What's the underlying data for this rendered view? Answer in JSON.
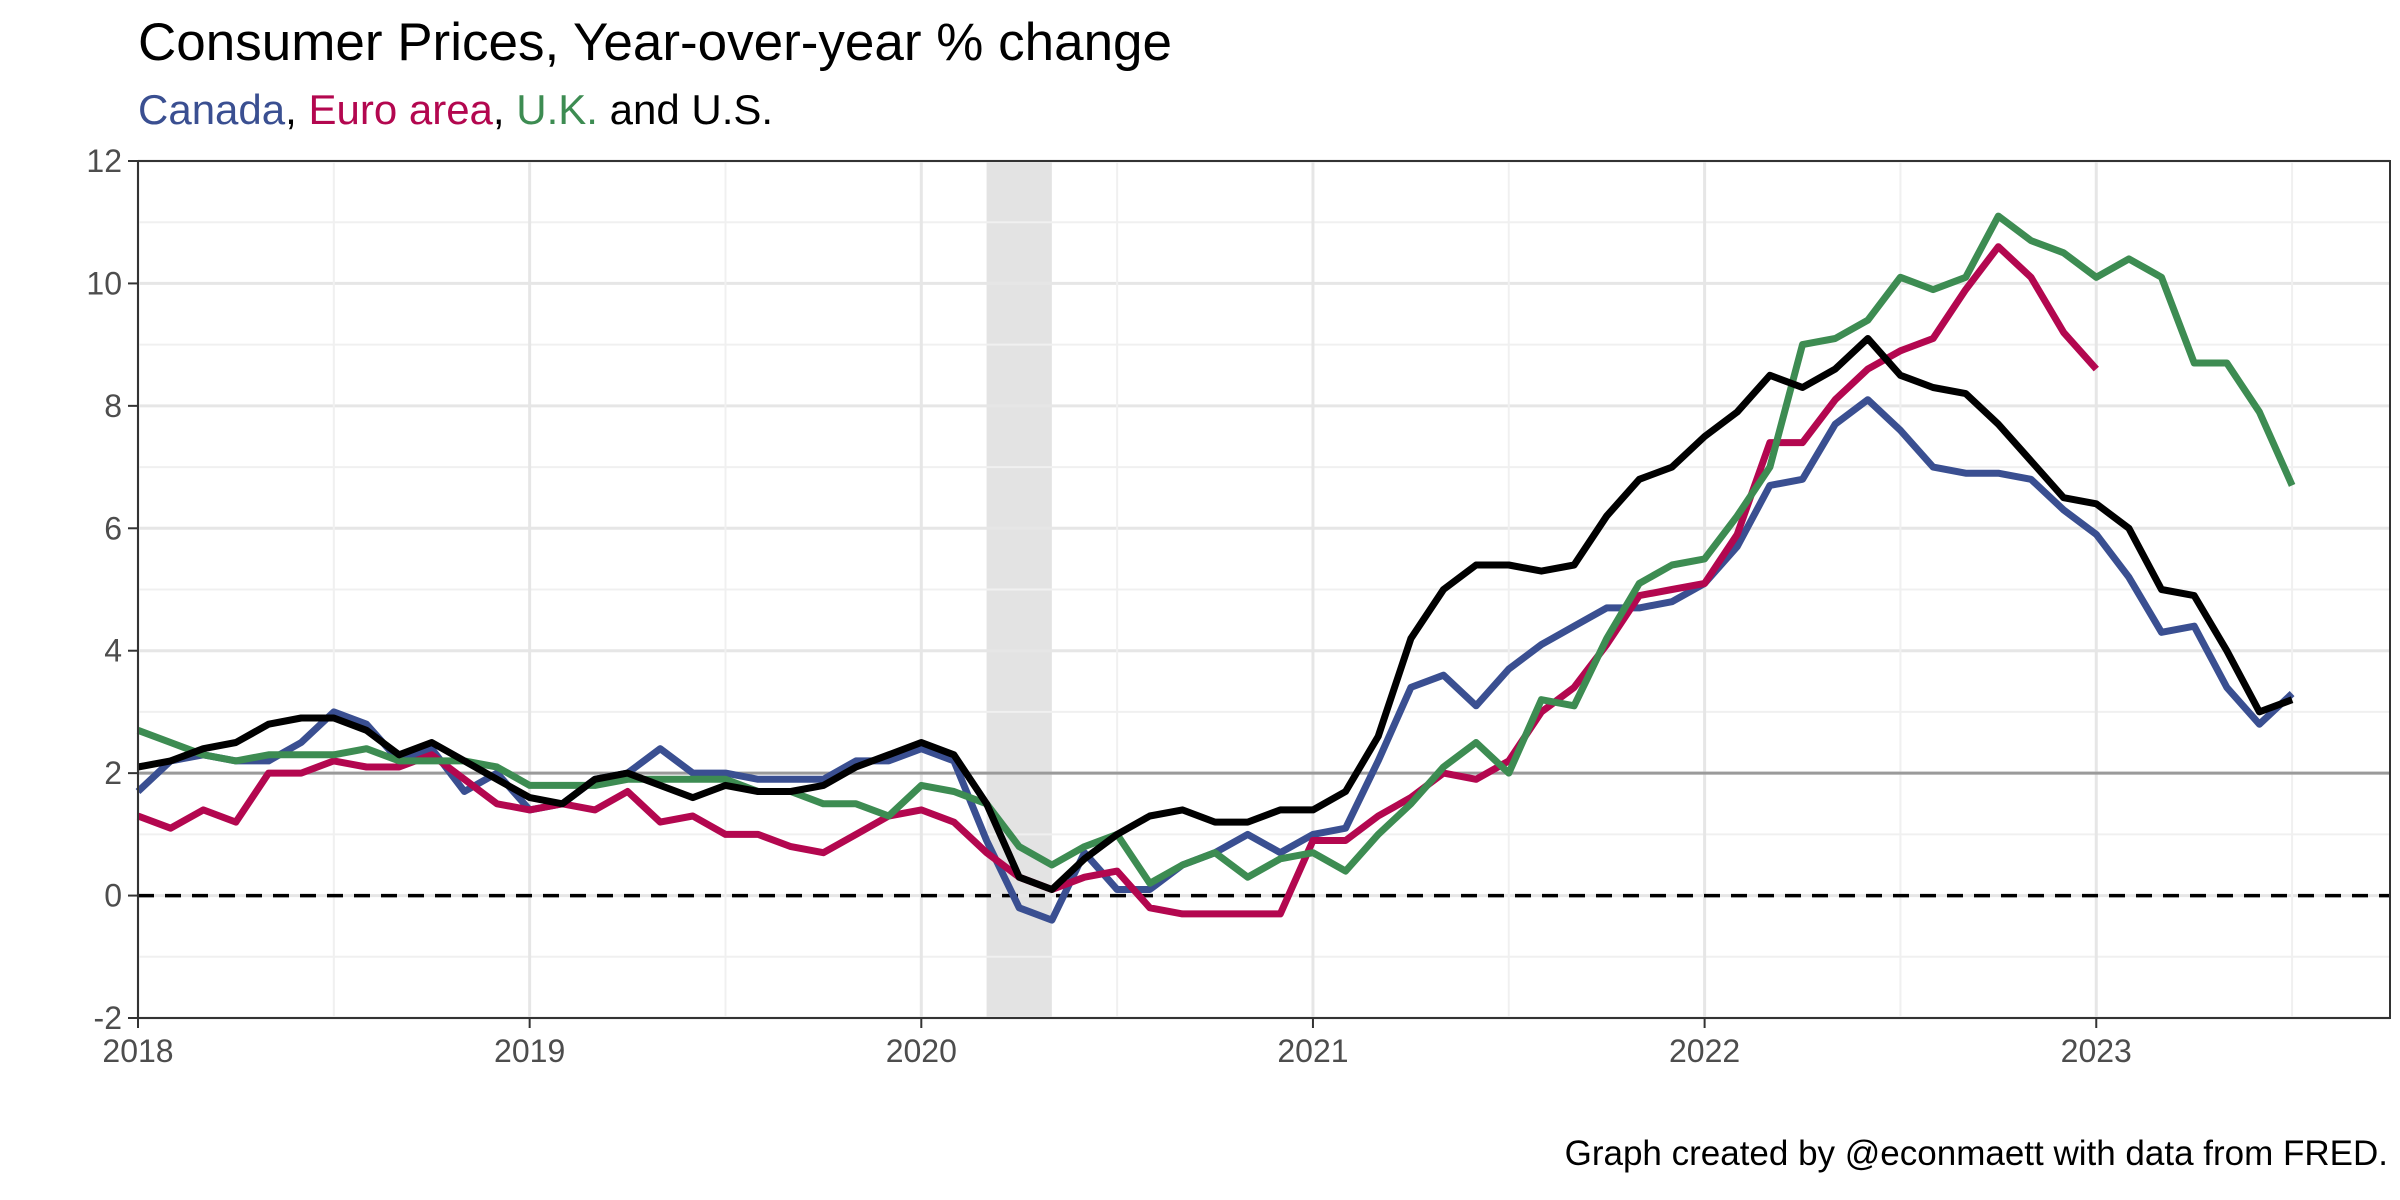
{
  "chart_data": {
    "type": "line",
    "title": "Consumer Prices, Year-over-year % change",
    "subtitle": {
      "parts": [
        {
          "text": "Canada",
          "color": "#3a4f91"
        },
        {
          "text": ", ",
          "color": "#000000"
        },
        {
          "text": "Euro area",
          "color": "#b3074f"
        },
        {
          "text": ", ",
          "color": "#000000"
        },
        {
          "text": "U.K.",
          "color": "#3d8c52"
        },
        {
          "text": " and U.S.",
          "color": "#000000"
        }
      ]
    },
    "caption": "Graph created by @econmaett with data from FRED.",
    "xlabel": "",
    "ylabel": "",
    "ylim": [
      -2,
      12
    ],
    "xlim": [
      "2018-01",
      "2023-10"
    ],
    "grid": true,
    "legend": "subtitle",
    "y_ticks": [
      -2,
      0,
      2,
      4,
      6,
      8,
      10,
      12
    ],
    "x_ticks": [
      "2018",
      "2019",
      "2020",
      "2021",
      "2022",
      "2023"
    ],
    "reference_lines": [
      {
        "y": 2,
        "style": "solid",
        "color": "#9a9a9a"
      },
      {
        "y": 0,
        "style": "dashed",
        "color": "#000000"
      }
    ],
    "recession_shading": [
      {
        "start": "2020-03",
        "end": "2020-04"
      }
    ],
    "series": [
      {
        "name": "Canada",
        "color": "#3a4f91",
        "start": "2018-01",
        "values": [
          1.7,
          2.2,
          2.3,
          2.2,
          2.2,
          2.5,
          3.0,
          2.8,
          2.2,
          2.4,
          1.7,
          2.0,
          1.4,
          1.5,
          1.9,
          2.0,
          2.4,
          2.0,
          2.0,
          1.9,
          1.9,
          1.9,
          2.2,
          2.2,
          2.4,
          2.2,
          0.9,
          -0.2,
          -0.4,
          0.7,
          0.1,
          0.1,
          0.5,
          0.7,
          1.0,
          0.7,
          1.0,
          1.1,
          2.2,
          3.4,
          3.6,
          3.1,
          3.7,
          4.1,
          4.4,
          4.7,
          4.7,
          4.8,
          5.1,
          5.7,
          6.7,
          6.8,
          7.7,
          8.1,
          7.6,
          7.0,
          6.9,
          6.9,
          6.8,
          6.3,
          5.9,
          5.2,
          4.3,
          4.4,
          3.4,
          2.8,
          3.3
        ]
      },
      {
        "name": "Euro area",
        "color": "#b3074f",
        "start": "2018-01",
        "values": [
          1.3,
          1.1,
          1.4,
          1.2,
          2.0,
          2.0,
          2.2,
          2.1,
          2.1,
          2.3,
          1.9,
          1.5,
          1.4,
          1.5,
          1.4,
          1.7,
          1.2,
          1.3,
          1.0,
          1.0,
          0.8,
          0.7,
          1.0,
          1.3,
          1.4,
          1.2,
          0.7,
          0.3,
          0.1,
          0.3,
          0.4,
          -0.2,
          -0.3,
          -0.3,
          -0.3,
          -0.3,
          0.9,
          0.9,
          1.3,
          1.6,
          2.0,
          1.9,
          2.2,
          3.0,
          3.4,
          4.1,
          4.9,
          5.0,
          5.1,
          5.9,
          7.4,
          7.4,
          8.1,
          8.6,
          8.9,
          9.1,
          9.9,
          10.6,
          10.1,
          9.2,
          8.6
        ]
      },
      {
        "name": "U.K.",
        "color": "#3d8c52",
        "start": "2018-01",
        "values": [
          2.7,
          2.5,
          2.3,
          2.2,
          2.3,
          2.3,
          2.3,
          2.4,
          2.2,
          2.2,
          2.2,
          2.1,
          1.8,
          1.8,
          1.8,
          1.9,
          1.9,
          1.9,
          1.9,
          1.7,
          1.7,
          1.5,
          1.5,
          1.3,
          1.8,
          1.7,
          1.5,
          0.8,
          0.5,
          0.8,
          1.0,
          0.2,
          0.5,
          0.7,
          0.3,
          0.6,
          0.7,
          0.4,
          1.0,
          1.5,
          2.1,
          2.5,
          2.0,
          3.2,
          3.1,
          4.2,
          5.1,
          5.4,
          5.5,
          6.2,
          7.0,
          9.0,
          9.1,
          9.4,
          10.1,
          9.9,
          10.1,
          11.1,
          10.7,
          10.5,
          10.1,
          10.4,
          10.1,
          8.7,
          8.7,
          7.9,
          6.7
        ]
      },
      {
        "name": "U.S.",
        "color": "#000000",
        "start": "2018-01",
        "values": [
          2.1,
          2.2,
          2.4,
          2.5,
          2.8,
          2.9,
          2.9,
          2.7,
          2.3,
          2.5,
          2.2,
          1.9,
          1.6,
          1.5,
          1.9,
          2.0,
          1.8,
          1.6,
          1.8,
          1.7,
          1.7,
          1.8,
          2.1,
          2.3,
          2.5,
          2.3,
          1.5,
          0.3,
          0.1,
          0.6,
          1.0,
          1.3,
          1.4,
          1.2,
          1.2,
          1.4,
          1.4,
          1.7,
          2.6,
          4.2,
          5.0,
          5.4,
          5.4,
          5.3,
          5.4,
          6.2,
          6.8,
          7.0,
          7.5,
          7.9,
          8.5,
          8.3,
          8.6,
          9.1,
          8.5,
          8.3,
          8.2,
          7.7,
          7.1,
          6.5,
          6.4,
          6.0,
          5.0,
          4.9,
          4.0,
          3.0,
          3.2
        ]
      }
    ]
  }
}
